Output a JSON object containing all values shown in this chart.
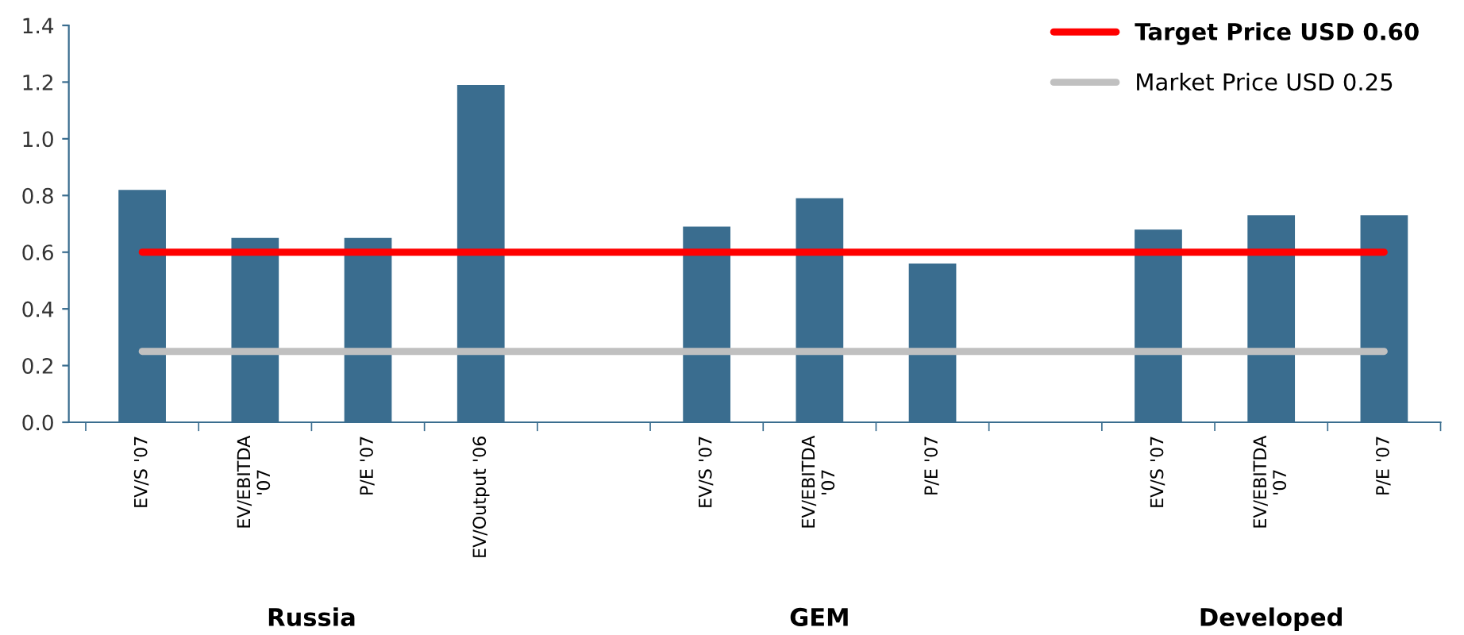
{
  "chart_data": {
    "type": "bar",
    "categories": [
      "EV/S '07",
      "EV/EBITDA\n'07",
      "P/E '07",
      "EV/Output '06",
      null,
      "EV/S '07",
      "EV/EBITDA\n'07",
      "P/E '07",
      null,
      "EV/S '07",
      "EV/EBITDA\n'07",
      "P/E '07"
    ],
    "series": [
      {
        "color": "#3a6d8f",
        "values": [
          0.82,
          0.65,
          0.65,
          1.19,
          null,
          0.69,
          0.79,
          0.56,
          null,
          0.68,
          0.73,
          0.73
        ]
      },
      {
        "type": "line",
        "name": "Target Price USD 0.60",
        "color": "#ff0000",
        "values": [
          0.6,
          0.6,
          0.6,
          0.6,
          0.6,
          0.6,
          0.6,
          0.6,
          0.6,
          0.6,
          0.6,
          0.6
        ]
      },
      {
        "type": "line",
        "name": "Market Price USD 0.25",
        "color": "#c0c0c0",
        "values": [
          0.25,
          0.25,
          0.25,
          0.25,
          0.25,
          0.25,
          0.25,
          0.25,
          0.25,
          0.25,
          0.25,
          0.25
        ]
      }
    ],
    "annotations": [
      "Russia",
      "GEM",
      "Developed"
    ],
    "ylim": [
      0,
      1.4
    ],
    "yticks": [
      {
        "value": 0,
        "label": "0.0"
      },
      {
        "value": 0.2,
        "label": "0.2"
      },
      {
        "value": 0.4,
        "label": "0.4"
      },
      {
        "value": 0.6,
        "label": "0.6"
      },
      {
        "value": 0.8,
        "label": "0.8"
      },
      {
        "value": 1.0,
        "label": "1.0"
      },
      {
        "value": 1.2,
        "label": "1.2"
      },
      {
        "value": 1.4,
        "label": "1.4"
      }
    ],
    "grid": false,
    "legend": "top right"
  }
}
